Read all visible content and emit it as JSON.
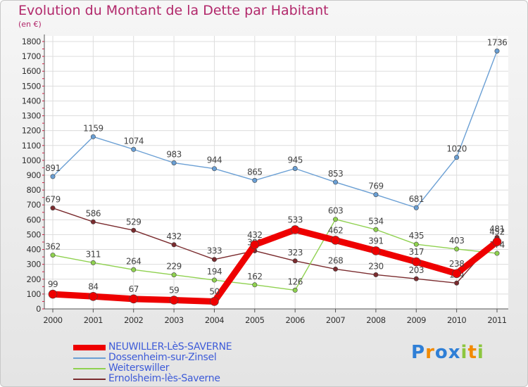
{
  "chart_data": {
    "type": "line",
    "title": "Evolution du Montant de la Dette par Habitant",
    "subtitle": "(en €)",
    "x": [
      "2000",
      "2001",
      "2002",
      "2003",
      "2004",
      "2005",
      "2006",
      "2007",
      "2008",
      "2009",
      "2010",
      "2011"
    ],
    "ylim": [
      0,
      1800
    ],
    "yticks": [
      0,
      100,
      200,
      300,
      400,
      500,
      600,
      700,
      800,
      900,
      1000,
      1100,
      1200,
      1300,
      1400,
      1500,
      1600,
      1700,
      1800
    ],
    "grid": true,
    "legend_position": "bottom-left",
    "series": [
      {
        "name": "Dossenheim-sur-Zinsel",
        "color": "#6a9fd4",
        "values": [
          891,
          1159,
          1074,
          983,
          944,
          865,
          945,
          853,
          769,
          681,
          1020,
          1736
        ],
        "labels": [
          "891",
          "1159",
          "1074",
          "983",
          "944",
          "865",
          "945",
          "853",
          "769",
          "681",
          "1020",
          "1736"
        ]
      },
      {
        "name": "Ernolsheim-lès-Saverne",
        "color": "#7a2b2e",
        "values": [
          679,
          586,
          529,
          432,
          333,
          391,
          323,
          268,
          230,
          203,
          174,
          481
        ],
        "labels": [
          "679",
          "586",
          "529",
          "432",
          "333",
          "391",
          "323",
          "268",
          "230",
          "203",
          "174",
          "481"
        ]
      },
      {
        "name": "Weiterswiller",
        "color": "#8fd14f",
        "values": [
          362,
          311,
          264,
          229,
          194,
          162,
          126,
          603,
          534,
          435,
          403,
          374
        ],
        "labels": [
          "362",
          "311",
          "264",
          "229",
          "194",
          "162",
          "126",
          "603",
          "534",
          "435",
          "403",
          "374"
        ]
      },
      {
        "name": "NEUWILLER-LèS-SAVERNE",
        "color": "#ee0000",
        "values": [
          99,
          84,
          67,
          59,
          50,
          432,
          533,
          462,
          391,
          317,
          238,
          452
        ],
        "labels": [
          "99",
          "84",
          "67",
          "59",
          "50",
          "432",
          "533",
          "462",
          "391",
          "317",
          "238",
          "452"
        ]
      }
    ],
    "legend_order": [
      "NEUWILLER-LèS-SAVERNE",
      "Dossenheim-sur-Zinsel",
      "Weiterswiller",
      "Ernolsheim-lès-Saverne"
    ]
  },
  "branding": {
    "logo_text": "Proxiti",
    "logo_letters": [
      "P",
      "r",
      "o",
      "x",
      "i",
      "t",
      "i"
    ],
    "logo_colors": [
      "#2f7fd6",
      "#f28a00",
      "#2f7fd6",
      "#2f7fd6",
      "#8cc63f",
      "#f28a00",
      "#8cc63f"
    ]
  }
}
